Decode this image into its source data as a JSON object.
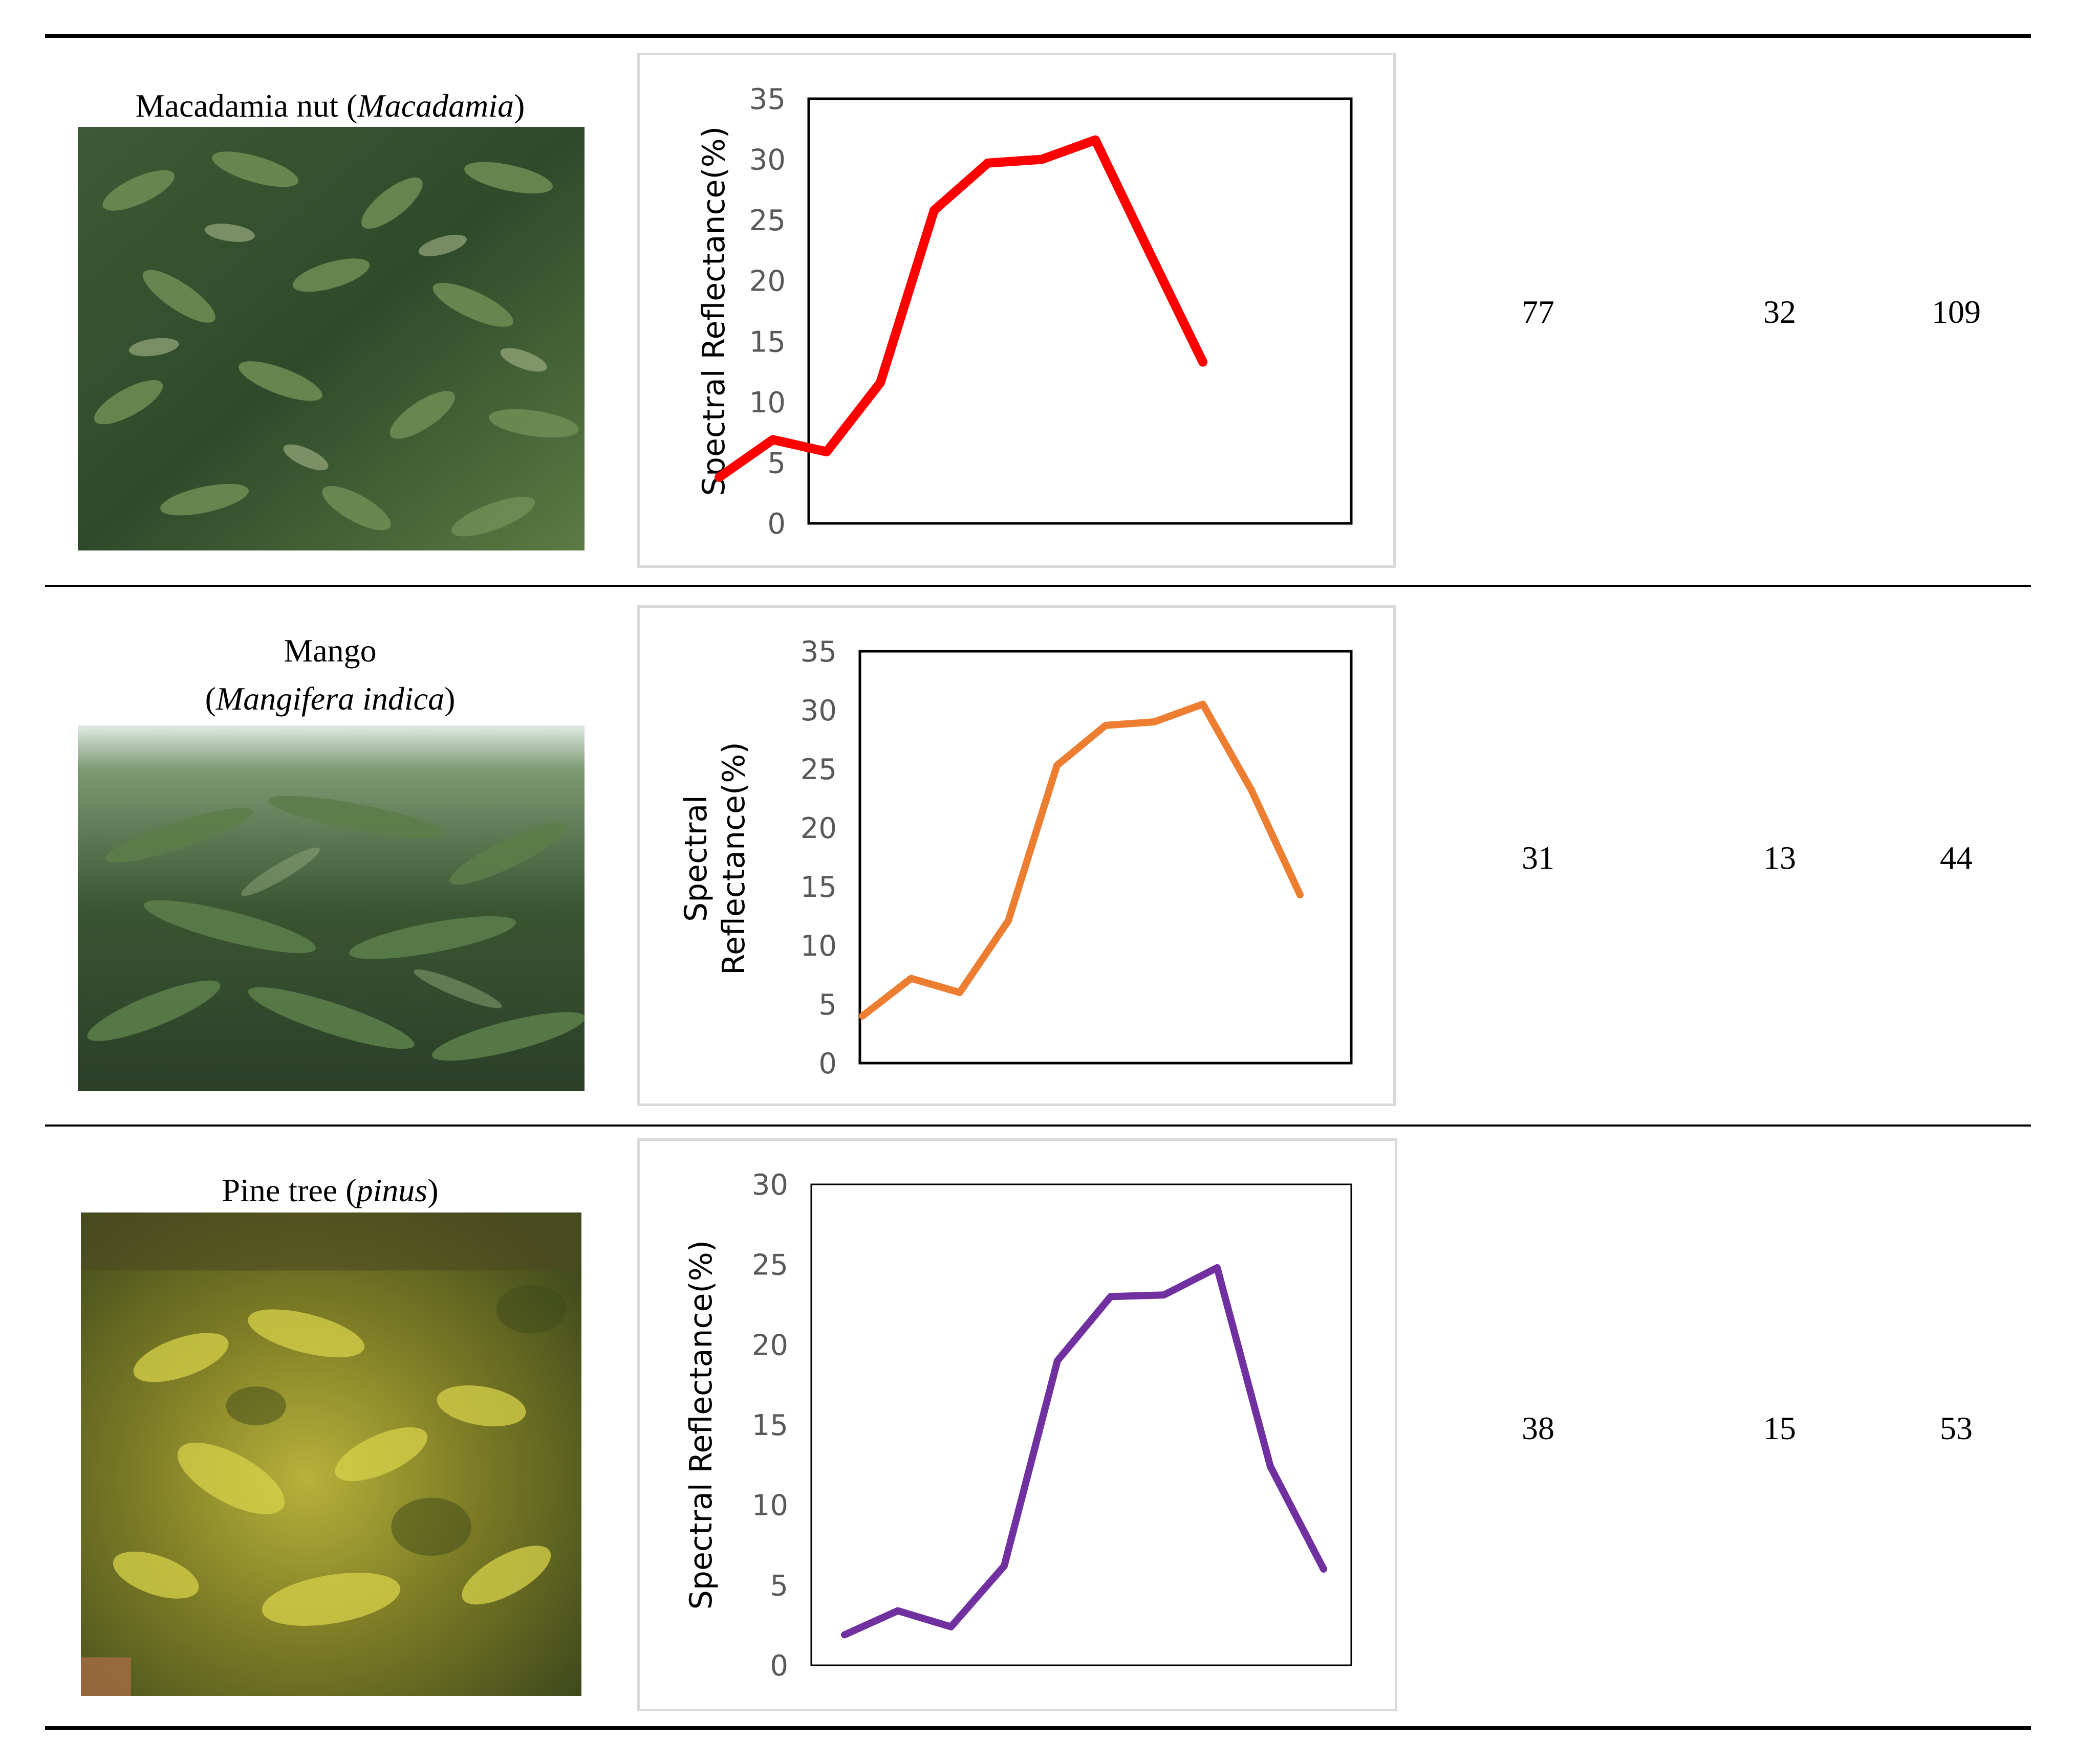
{
  "rows": [
    {
      "species_common": "Macadamia nut (",
      "species_latin": "Macadamia",
      "species_close": ")",
      "photo_alt": "Macadamia nut foliage",
      "col1": "77",
      "col2": "32",
      "col3": "109",
      "chart_color": "#ff0000"
    },
    {
      "species_common": "Mango",
      "species_open": "(",
      "species_latin": "Mangifera indica",
      "species_close": ")",
      "photo_alt": "Mango foliage",
      "col1": "31",
      "col2": "13",
      "col3": "44",
      "chart_color": "#ed7d31"
    },
    {
      "species_common": "Pine tree (",
      "species_latin": "pinus",
      "species_close": ")",
      "photo_alt": "Pine tree foliage",
      "col1": "38",
      "col2": "15",
      "col3": "53",
      "chart_color": "#7030a0"
    }
  ],
  "chart_data": [
    {
      "type": "line",
      "title": "",
      "xlabel": "",
      "ylabel": "Spectral Reflectance(%)",
      "ylim": [
        0,
        35
      ],
      "yticks": [
        0,
        5,
        10,
        15,
        20,
        25,
        30,
        35
      ],
      "x": [
        1,
        2,
        3,
        4,
        5,
        6,
        7,
        8,
        9,
        10
      ],
      "values": [
        3.8,
        6.9,
        5.9,
        11.6,
        25.8,
        29.7,
        30.0,
        31.6,
        22.4,
        13.3
      ],
      "color": "#ff0000"
    },
    {
      "type": "line",
      "title": "",
      "xlabel": "",
      "ylabel": "Spectral Reflectance(%)",
      "ylabel_lines": [
        "Spectral",
        "Reflectance(%)"
      ],
      "ylim": [
        0,
        35
      ],
      "yticks": [
        0,
        5,
        10,
        15,
        20,
        25,
        30,
        35
      ],
      "x": [
        1,
        2,
        3,
        4,
        5,
        6,
        7,
        8,
        9,
        10
      ],
      "values": [
        4.0,
        7.2,
        6.0,
        12.1,
        25.3,
        28.7,
        29.0,
        30.5,
        23.2,
        14.3
      ],
      "color": "#ed7d31"
    },
    {
      "type": "line",
      "title": "",
      "xlabel": "",
      "ylabel": "Spectral Reflectance(%)",
      "ylim": [
        0,
        30
      ],
      "yticks": [
        0,
        5,
        10,
        15,
        20,
        25,
        30
      ],
      "x": [
        1,
        2,
        3,
        4,
        5,
        6,
        7,
        8,
        9,
        10
      ],
      "values": [
        1.9,
        3.4,
        2.4,
        6.2,
        19.0,
        23.0,
        23.1,
        24.8,
        12.4,
        6.0
      ],
      "color": "#7030a0"
    }
  ]
}
